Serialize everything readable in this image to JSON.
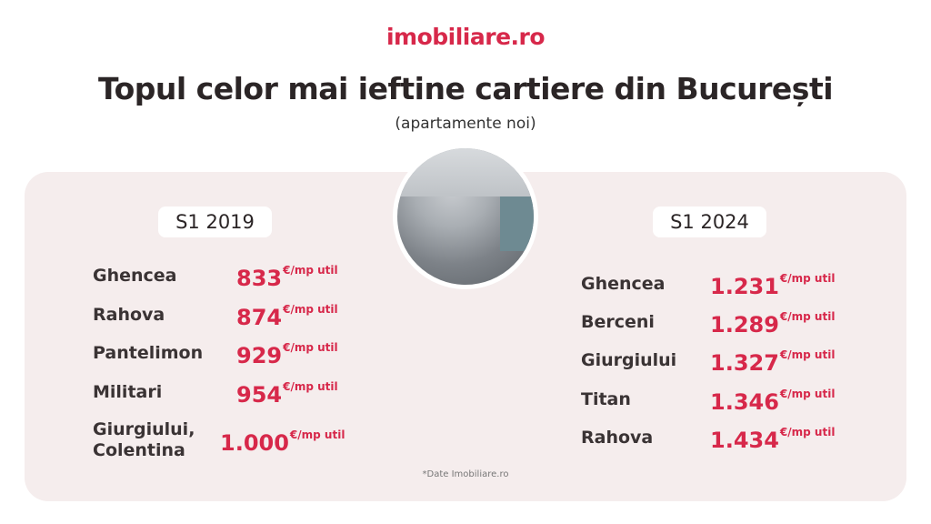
{
  "logo": "imobiliare.ro",
  "title": "Topul celor mai ieftine cartiere din București",
  "subtitle": "(apartamente noi)",
  "unit": "€/mp util",
  "left": {
    "label": "S1 2019",
    "rows": [
      {
        "name": "Ghencea",
        "price": "833"
      },
      {
        "name": "Rahova",
        "price": "874"
      },
      {
        "name": "Pantelimon",
        "price": "929"
      },
      {
        "name": "Militari",
        "price": "954"
      },
      {
        "name": "Giurgiului, Colentina",
        "price": "1.000"
      }
    ]
  },
  "right": {
    "label": "S1 2024",
    "rows": [
      {
        "name": "Ghencea",
        "price": "1.231"
      },
      {
        "name": "Berceni",
        "price": "1.289"
      },
      {
        "name": "Giurgiului",
        "price": "1.327"
      },
      {
        "name": "Titan",
        "price": "1.346"
      },
      {
        "name": "Rahova",
        "price": "1.434"
      }
    ]
  },
  "note": "*Date Imobiliare.ro",
  "colors": {
    "accent": "#d7284a",
    "card": "#f5eded"
  }
}
